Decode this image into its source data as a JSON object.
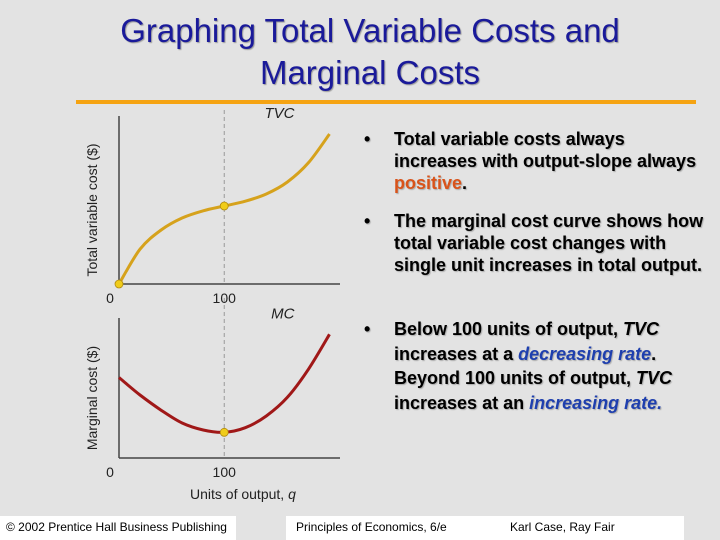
{
  "slide": {
    "title_line1": "Graphing Total Variable Costs and",
    "title_line2": "Marginal Costs"
  },
  "colors": {
    "title": "#1a1a9a",
    "rule": "#f5a312",
    "tvc_curve": "#d6a21c",
    "mc_curve": "#a01818",
    "marker": "#f0cc1a",
    "highlight_red": "#d9531a",
    "highlight_blue": "#1e3fae"
  },
  "bullets": [
    {
      "parts": [
        "Total variable costs always increases with output-slope always ",
        "positive",
        "."
      ]
    },
    {
      "parts": [
        "The marginal cost curve shows how total variable cost changes with single unit increases in total output."
      ]
    },
    {
      "parts": [
        "Below 100 units of output, ",
        "TVC",
        " increases at a ",
        "decreasing rate",
        ".  Beyond 100 units of output, ",
        "TVC",
        " increases at an ",
        "increasing rate."
      ]
    }
  ],
  "bullet_marker": "•",
  "chart_data": [
    {
      "type": "line",
      "title": "",
      "ylabel": "Total variable cost ($)",
      "xlabel": "",
      "series": [
        {
          "name": "TVC",
          "x": [
            0,
            20,
            40,
            60,
            80,
            100,
            120,
            140,
            160,
            180,
            200
          ],
          "y": [
            0,
            29,
            45,
            55,
            61,
            65,
            69,
            75,
            85,
            101,
            125
          ]
        }
      ],
      "xticks": [
        "0",
        "100"
      ],
      "xlim": [
        0,
        210
      ],
      "ylim": [
        0,
        140
      ],
      "reference_x": 100,
      "marked_points": [
        {
          "x": 0,
          "y": 0
        },
        {
          "x": 100,
          "y": 65
        }
      ]
    },
    {
      "type": "line",
      "title": "",
      "ylabel": "Marginal cost ($)",
      "xlabel": "Units of output, q",
      "series": [
        {
          "name": "MC",
          "x": [
            0,
            20,
            40,
            60,
            80,
            100,
            120,
            140,
            160,
            180,
            200
          ],
          "y": [
            69,
            54,
            41,
            30,
            24,
            22,
            26,
            36,
            52,
            76,
            106
          ]
        }
      ],
      "xticks": [
        "0",
        "100"
      ],
      "xlim": [
        0,
        210
      ],
      "ylim": [
        0,
        120
      ],
      "reference_x": 100,
      "marked_points": [
        {
          "x": 100,
          "y": 22
        }
      ]
    }
  ],
  "footer": {
    "left": "© 2002 Prentice Hall Business Publishing",
    "center": "Principles of Economics, 6/e",
    "right": "Karl Case, Ray Fair"
  }
}
